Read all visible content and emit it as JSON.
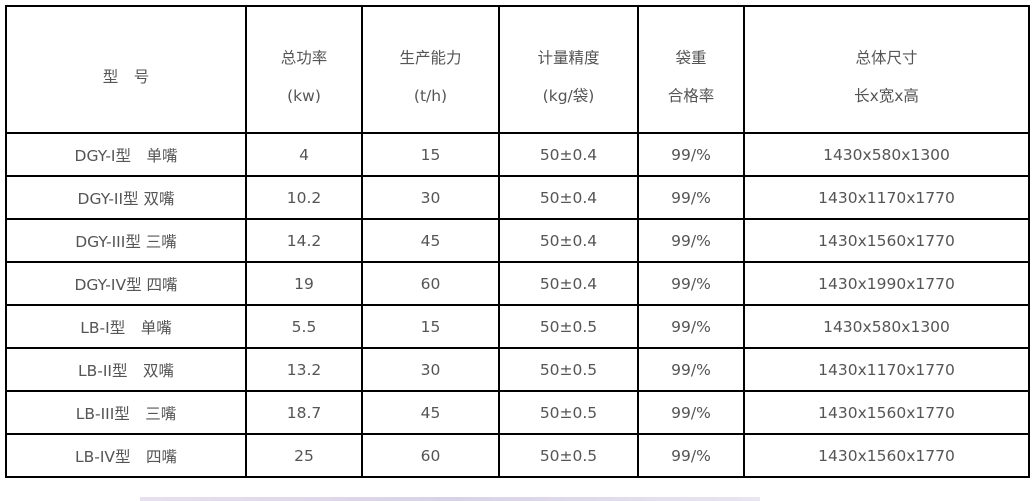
{
  "headers": [
    {
      "line1": "型　号",
      "line2": ""
    },
    {
      "line1": "总功率",
      "line2": "(kw)"
    },
    {
      "line1": "生产能力",
      "line2": "(t/h)"
    },
    {
      "line1": "计量精度",
      "line2": "(kg/袋)"
    },
    {
      "line1": "袋重",
      "line2": "合格率"
    },
    {
      "line1": "总体尺寸",
      "line2": "长x宽x高"
    }
  ],
  "rows": [
    [
      "DGY-I型　单嘴",
      "4",
      "15",
      "50±0.4",
      "99/%",
      "1430x580x1300"
    ],
    [
      "DGY-II型 双嘴",
      "10.2",
      "30",
      "50±0.4",
      "99/%",
      "1430x1170x1770"
    ],
    [
      "DGY-III型 三嘴",
      "14.2",
      "45",
      "50±0.4",
      "99/%",
      "1430x1560x1770"
    ],
    [
      "DGY-IV型 四嘴",
      "19",
      "60",
      "50±0.4",
      "99/%",
      "1430x1990x1770"
    ],
    [
      "LB-I型　单嘴",
      "5.5",
      "15",
      "50±0.5",
      "99/%",
      "1430x580x1300"
    ],
    [
      "LB-II型　双嘴",
      "13.2",
      "30",
      "50±0.5",
      "99/%",
      "1430x1170x1770"
    ],
    [
      "LB-III型　三嘴",
      "18.7",
      "45",
      "50±0.5",
      "99/%",
      "1430x1560x1770"
    ],
    [
      "LB-IV型　四嘴",
      "25",
      "60",
      "50±0.5",
      "99/%",
      "1430x1560x1770"
    ]
  ]
}
